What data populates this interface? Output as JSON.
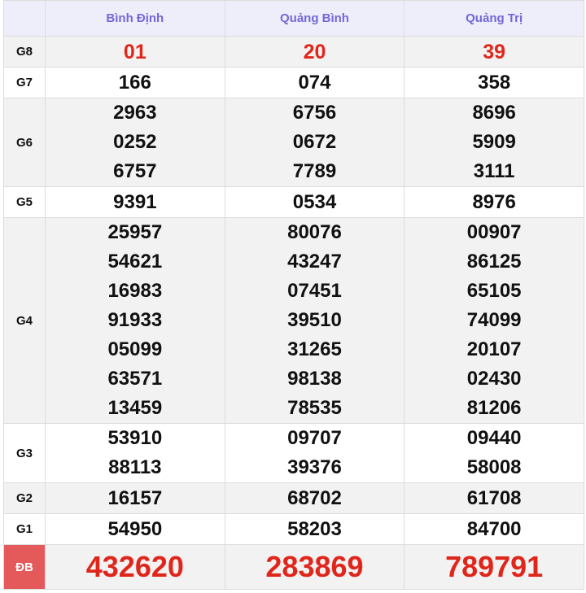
{
  "header": {
    "provinces": [
      "Bình Định",
      "Quảng Bình",
      "Quảng Trị"
    ]
  },
  "prizes": [
    {
      "label": "G8",
      "values": [
        [
          "01"
        ],
        [
          "20"
        ],
        [
          "39"
        ]
      ],
      "accent": "red"
    },
    {
      "label": "G7",
      "values": [
        [
          "166"
        ],
        [
          "074"
        ],
        [
          "358"
        ]
      ]
    },
    {
      "label": "G6",
      "values": [
        [
          "2963",
          "0252",
          "6757"
        ],
        [
          "6756",
          "0672",
          "7789"
        ],
        [
          "8696",
          "5909",
          "3111"
        ]
      ]
    },
    {
      "label": "G5",
      "values": [
        [
          "9391"
        ],
        [
          "0534"
        ],
        [
          "8976"
        ]
      ]
    },
    {
      "label": "G4",
      "values": [
        [
          "25957",
          "54621",
          "16983",
          "91933",
          "05099",
          "63571",
          "13459"
        ],
        [
          "80076",
          "43247",
          "07451",
          "39510",
          "31265",
          "98138",
          "78535"
        ],
        [
          "00907",
          "86125",
          "65105",
          "74099",
          "20107",
          "02430",
          "81206"
        ]
      ]
    },
    {
      "label": "G3",
      "values": [
        [
          "53910",
          "88113"
        ],
        [
          "09707",
          "39376"
        ],
        [
          "09440",
          "58008"
        ]
      ]
    },
    {
      "label": "G2",
      "values": [
        [
          "16157"
        ],
        [
          "68702"
        ],
        [
          "61708"
        ]
      ]
    },
    {
      "label": "G1",
      "values": [
        [
          "54950"
        ],
        [
          "58203"
        ],
        [
          "84700"
        ]
      ]
    },
    {
      "label": "ĐB",
      "values": [
        [
          "432620"
        ],
        [
          "283869"
        ],
        [
          "789791"
        ]
      ],
      "accent": "red"
    }
  ],
  "colors": {
    "header_text": "#7466d9",
    "red": "#e0261b",
    "db_label_bg": "#e45a5a"
  }
}
